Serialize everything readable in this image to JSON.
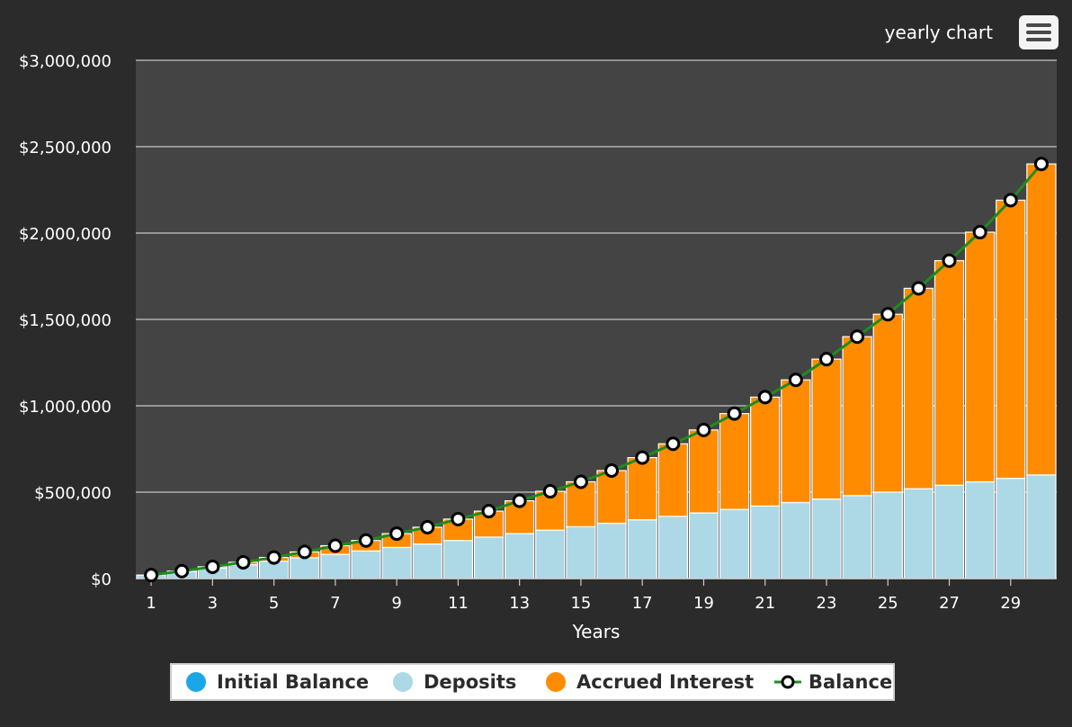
{
  "header": {
    "title": "yearly chart"
  },
  "menu": {
    "icon": "hamburger-menu-icon"
  },
  "colors": {
    "background": "#2b2b2b",
    "plot_background": "#444444",
    "initial_balance": "#1aa7e8",
    "deposits": "#add8e6",
    "accrued_interest": "#ff8c00",
    "balance_line": "#1e8c1e",
    "gridline": "#e0e0e0"
  },
  "chart_data": {
    "type": "bar",
    "stacked": true,
    "xlabel": "Years",
    "ylabel": "",
    "ylim": [
      0,
      3000000
    ],
    "y_ticks": [
      0,
      500000,
      1000000,
      1500000,
      2000000,
      2500000,
      3000000
    ],
    "y_tick_labels": [
      "$0",
      "$500,000",
      "$1,000,000",
      "$1,500,000",
      "$2,000,000",
      "$2,500,000",
      "$3,000,000"
    ],
    "categories": [
      1,
      2,
      3,
      4,
      5,
      6,
      7,
      8,
      9,
      10,
      11,
      12,
      13,
      14,
      15,
      16,
      17,
      18,
      19,
      20,
      21,
      22,
      23,
      24,
      25,
      26,
      27,
      28,
      29,
      30
    ],
    "x_tick_labels": [
      "1",
      "3",
      "5",
      "7",
      "9",
      "11",
      "13",
      "15",
      "17",
      "19",
      "21",
      "23",
      "25",
      "27",
      "29"
    ],
    "legend_position": "bottom",
    "grid": true,
    "series": [
      {
        "name": "Initial Balance",
        "values": [
          0,
          0,
          0,
          0,
          0,
          0,
          0,
          0,
          0,
          0,
          0,
          0,
          0,
          0,
          0,
          0,
          0,
          0,
          0,
          0,
          0,
          0,
          0,
          0,
          0,
          0,
          0,
          0,
          0,
          0
        ]
      },
      {
        "name": "Deposits",
        "values": [
          20000,
          40000,
          60000,
          80000,
          100000,
          120000,
          140000,
          160000,
          180000,
          200000,
          220000,
          240000,
          260000,
          280000,
          300000,
          320000,
          340000,
          360000,
          380000,
          400000,
          420000,
          440000,
          460000,
          480000,
          500000,
          520000,
          540000,
          560000,
          580000,
          600000
        ]
      },
      {
        "name": "Accrued Interest",
        "values": [
          0,
          3000,
          8000,
          14000,
          22000,
          34000,
          50000,
          60000,
          80000,
          97000,
          124000,
          150000,
          190000,
          225000,
          260000,
          305000,
          360000,
          420000,
          480000,
          555000,
          630000,
          710000,
          810000,
          920000,
          1030000,
          1160000,
          1300000,
          1445000,
          1610000,
          1800000
        ]
      },
      {
        "name": "Balance",
        "type": "line",
        "values": [
          20000,
          43000,
          68000,
          94000,
          122000,
          154000,
          190000,
          220000,
          260000,
          297000,
          344000,
          390000,
          450000,
          505000,
          560000,
          625000,
          700000,
          780000,
          860000,
          955000,
          1050000,
          1150000,
          1270000,
          1400000,
          1530000,
          1680000,
          1840000,
          2005000,
          2190000,
          2400000
        ]
      }
    ]
  },
  "legend": {
    "items": [
      {
        "label": "Initial Balance",
        "symbol": "dot"
      },
      {
        "label": "Deposits",
        "symbol": "dot"
      },
      {
        "label": "Accrued Interest",
        "symbol": "dot"
      },
      {
        "label": "Balance",
        "symbol": "line-marker"
      }
    ]
  }
}
